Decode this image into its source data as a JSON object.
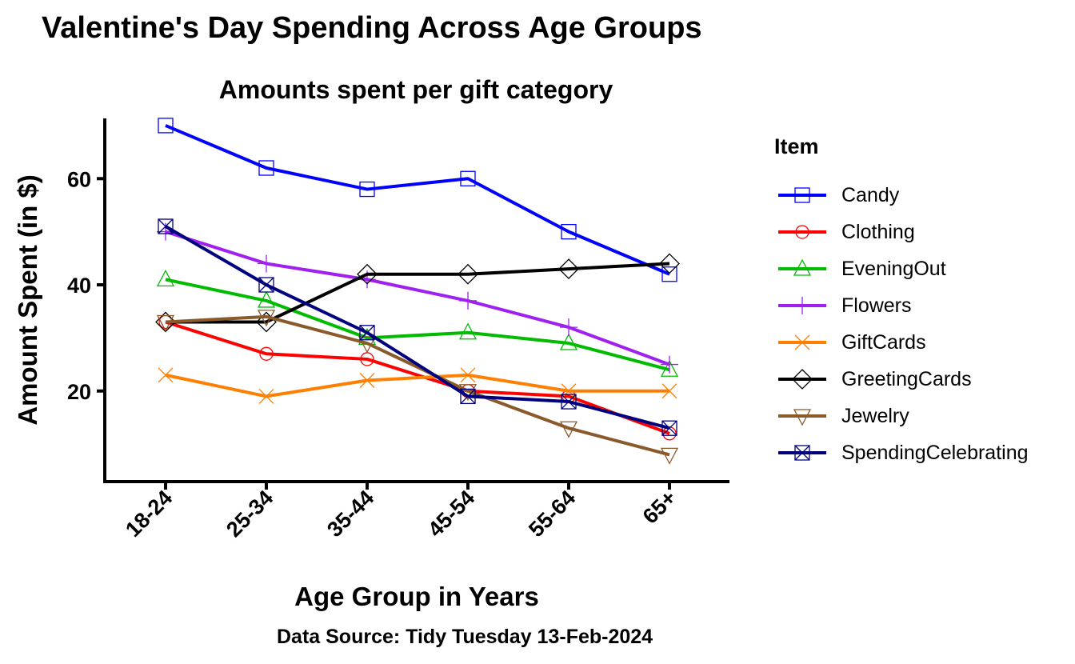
{
  "chart_data": {
    "type": "line",
    "title": "Valentine's Day Spending Across Age Groups",
    "subtitle": "Amounts spent per gift category",
    "caption": "Data Source: Tidy Tuesday 13-Feb-2024",
    "xlabel": "Age Group in Years",
    "ylabel": "Amount Spent (in $)",
    "categories": [
      "18-24",
      "25-34",
      "35-44",
      "45-54",
      "55-64",
      "65+"
    ],
    "yticks": [
      20,
      40,
      60
    ],
    "ylim": [
      6,
      73
    ],
    "grid": false,
    "legend": {
      "title": "Item",
      "position": "right"
    },
    "series": [
      {
        "name": "Candy",
        "color": "#0000ff",
        "marker": "square",
        "values": [
          70,
          62,
          58,
          60,
          50,
          42
        ]
      },
      {
        "name": "Clothing",
        "color": "#ff0000",
        "marker": "circle",
        "values": [
          33,
          27,
          26,
          20,
          19,
          12
        ]
      },
      {
        "name": "EveningOut",
        "color": "#00bb00",
        "marker": "triangle",
        "values": [
          41,
          37,
          30,
          31,
          29,
          24
        ]
      },
      {
        "name": "Flowers",
        "color": "#a020f0",
        "marker": "plus",
        "values": [
          50,
          44,
          41,
          37,
          32,
          25
        ]
      },
      {
        "name": "GiftCards",
        "color": "#ff8000",
        "marker": "x",
        "values": [
          23,
          19,
          22,
          23,
          20,
          20
        ]
      },
      {
        "name": "GreetingCards",
        "color": "#000000",
        "marker": "diamond",
        "values": [
          33,
          33,
          42,
          42,
          43,
          44
        ]
      },
      {
        "name": "Jewelry",
        "color": "#8b5a2b",
        "marker": "triangle-down",
        "values": [
          33,
          34,
          29,
          20,
          13,
          8
        ]
      },
      {
        "name": "SpendingCelebrating",
        "color": "#00007f",
        "marker": "square-x",
        "values": [
          51,
          40,
          31,
          19,
          18,
          13
        ]
      }
    ]
  }
}
